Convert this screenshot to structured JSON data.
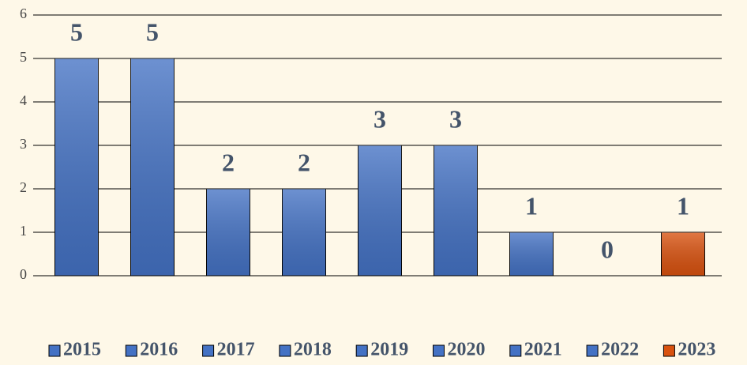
{
  "chart_data": {
    "type": "bar",
    "categories": [
      null
    ],
    "series": [
      {
        "name": "2015",
        "color": "#4472c4",
        "values": [
          5
        ]
      },
      {
        "name": "2016",
        "color": "#4472c4",
        "values": [
          5
        ]
      },
      {
        "name": "2017",
        "color": "#4472c4",
        "values": [
          2
        ]
      },
      {
        "name": "2018",
        "color": "#4472c4",
        "values": [
          2
        ]
      },
      {
        "name": "2019",
        "color": "#4472c4",
        "values": [
          3
        ]
      },
      {
        "name": "2020",
        "color": "#4472c4",
        "values": [
          3
        ]
      },
      {
        "name": "2021",
        "color": "#4472c4",
        "values": [
          1
        ]
      },
      {
        "name": "2022",
        "color": "#4472c4",
        "values": [
          0
        ]
      },
      {
        "name": "2023",
        "color": "#d9520f",
        "values": [
          1
        ]
      }
    ],
    "ylim": [
      0,
      6
    ],
    "yticks": [
      0,
      1,
      2,
      3,
      4,
      5,
      6
    ],
    "grid": true,
    "legend": "bottom"
  }
}
